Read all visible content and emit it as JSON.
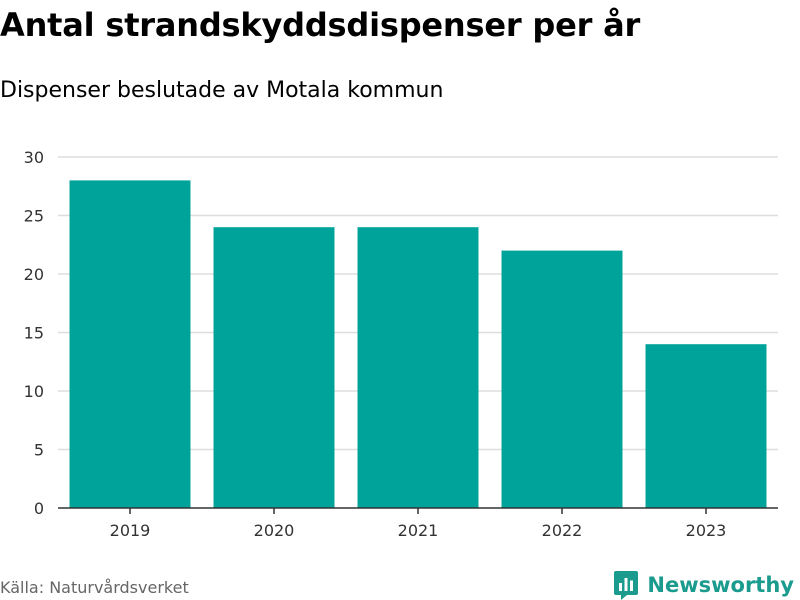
{
  "chart_data": {
    "type": "bar",
    "title": "Antal strandskyddsdispenser per år",
    "subtitle": "Dispenser beslutade av Motala kommun",
    "categories": [
      "2019",
      "2020",
      "2021",
      "2022",
      "2023"
    ],
    "values": [
      28,
      24,
      24,
      22,
      14
    ],
    "xlabel": "",
    "ylabel": "",
    "ylim": [
      0,
      30
    ],
    "yticks": [
      0,
      5,
      10,
      15,
      20,
      25,
      30
    ],
    "grid": true,
    "bar_color": "#00a39a"
  },
  "source": "Källa: Naturvårdsverket",
  "brand": {
    "name": "Newsworthy",
    "icon": "newsworthy-logo-icon",
    "color": "#1a9b8e"
  }
}
